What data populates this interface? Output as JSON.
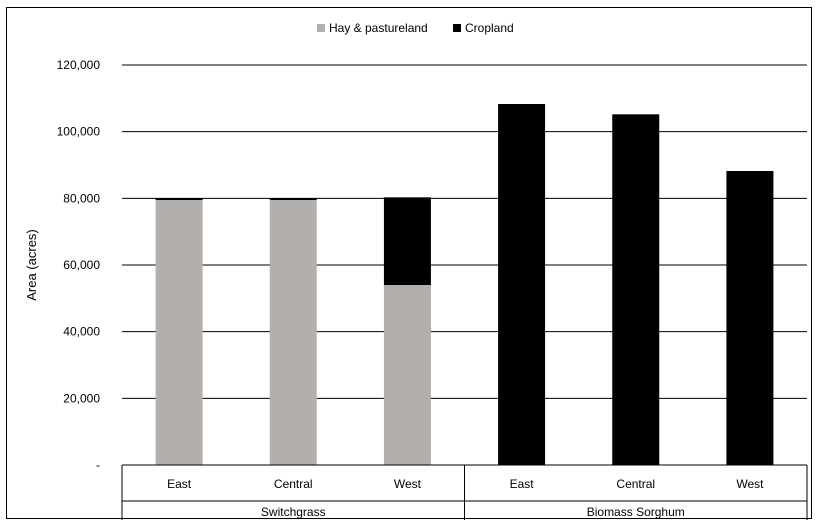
{
  "chart_data": {
    "type": "bar",
    "stacked": true,
    "ylabel": "Area (acres)",
    "ylim": [
      0,
      120000
    ],
    "y_ticks": [
      0,
      20000,
      40000,
      60000,
      80000,
      100000,
      120000
    ],
    "y_tick_labels": [
      "-",
      "20,000",
      "40,000",
      "60,000",
      "80,000",
      "100,000",
      "120,000"
    ],
    "groups": [
      {
        "name": "Switchgrass",
        "categories": [
          "East",
          "Central",
          "West"
        ]
      },
      {
        "name": "Biomass Sorghum",
        "categories": [
          "East",
          "Central",
          "West"
        ]
      }
    ],
    "series": [
      {
        "name": "Hay & pastureland",
        "color": "#b3afad",
        "values": [
          79500,
          79500,
          54000,
          0,
          0,
          0
        ]
      },
      {
        "name": "Cropland",
        "color": "#000000",
        "values": [
          500,
          500,
          26300,
          108300,
          105200,
          88200
        ]
      }
    ],
    "legend_position": "top-center",
    "grid": true
  }
}
